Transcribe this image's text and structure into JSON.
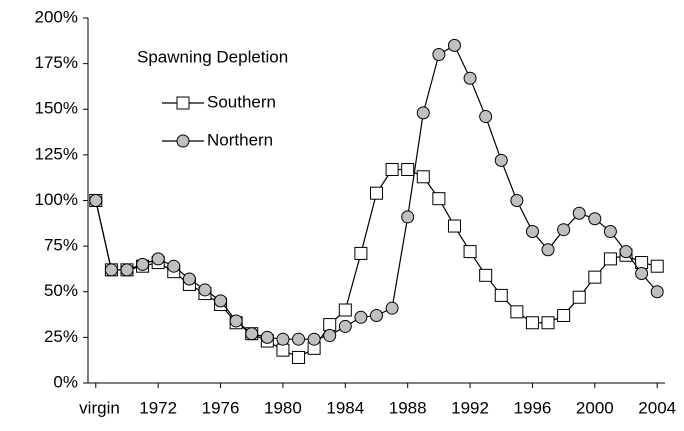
{
  "chart_data": {
    "type": "line",
    "legend_title": "Spawning Depletion",
    "categories": [
      "virgin",
      null,
      null,
      null,
      "1972",
      null,
      null,
      null,
      "1976",
      null,
      null,
      null,
      "1980",
      null,
      null,
      null,
      "1984",
      null,
      null,
      null,
      "1988",
      null,
      null,
      null,
      "1992",
      null,
      null,
      null,
      "1996",
      null,
      null,
      null,
      "2000",
      null,
      null,
      null,
      "2004"
    ],
    "series": [
      {
        "name": "Southern",
        "color": "#000000",
        "marker": "square",
        "marker_fill": "#ffffff",
        "values": [
          100,
          62,
          62,
          64,
          66,
          61,
          54,
          49,
          43,
          33,
          27,
          23,
          18,
          14,
          19,
          32,
          40,
          71,
          104,
          117,
          117,
          113,
          101,
          86,
          72,
          59,
          48,
          39,
          33,
          33,
          37,
          47,
          58,
          68,
          70,
          66,
          64
        ]
      },
      {
        "name": "Northern",
        "color": "#000000",
        "marker": "circle",
        "marker_fill": "#c0c0c0",
        "values": [
          100,
          62,
          62,
          65,
          68,
          64,
          57,
          51,
          45,
          34,
          27,
          25,
          24,
          24,
          24,
          26,
          31,
          36,
          37,
          41,
          91,
          148,
          180,
          185,
          167,
          146,
          122,
          100,
          83,
          73,
          84,
          93,
          90,
          83,
          72,
          60,
          50
        ]
      }
    ],
    "ylim": [
      0,
      200
    ],
    "yticks": [
      {
        "value": 0,
        "label": "0%"
      },
      {
        "value": 25,
        "label": "25%"
      },
      {
        "value": 50,
        "label": "50%"
      },
      {
        "value": 75,
        "label": "75%"
      },
      {
        "value": 100,
        "label": "100%"
      },
      {
        "value": 125,
        "label": "125%"
      },
      {
        "value": 150,
        "label": "150%"
      },
      {
        "value": 175,
        "label": "175%"
      },
      {
        "value": 200,
        "label": "200%"
      }
    ],
    "grid": false
  }
}
